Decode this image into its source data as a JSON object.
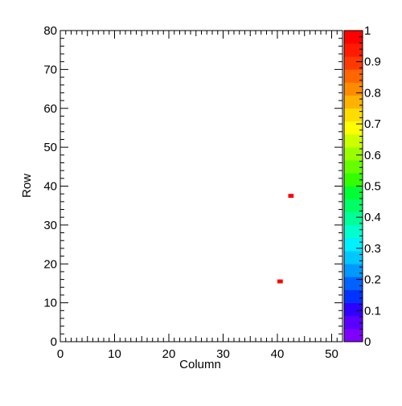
{
  "chart_data": {
    "type": "heatmap",
    "xlabel": "Column",
    "ylabel": "Row",
    "xlim": [
      0,
      52
    ],
    "ylim": [
      0,
      80
    ],
    "x_ticks": [
      0,
      10,
      20,
      30,
      40,
      50
    ],
    "y_ticks": [
      0,
      10,
      20,
      30,
      40,
      50,
      60,
      70,
      80
    ],
    "cells": [
      {
        "column": 42,
        "row": 37,
        "value": 1
      },
      {
        "column": 40,
        "row": 15,
        "value": 1
      }
    ],
    "colorbar": {
      "range": [
        0,
        1
      ],
      "ticks": [
        0,
        0.1,
        0.2,
        0.3,
        0.4,
        0.5,
        0.6,
        0.7,
        0.8,
        0.9,
        1
      ],
      "tick_labels": [
        "0",
        "0.1",
        "0.2",
        "0.3",
        "0.4",
        "0.5",
        "0.6",
        "0.7",
        "0.8",
        "0.9",
        "1"
      ],
      "colors": [
        "#8000ff",
        "#5a00ff",
        "#2f00ff",
        "#0033ff",
        "#0063ff",
        "#0099ff",
        "#00c8ff",
        "#00f0ff",
        "#00ffcc",
        "#00ff99",
        "#00ff66",
        "#00ff33",
        "#33ff00",
        "#66ff00",
        "#99ff00",
        "#ccff00",
        "#ffff00",
        "#ffdd00",
        "#ffb300",
        "#ff8c00",
        "#ff6600",
        "#ff3a00",
        "#ff1a00",
        "#ff0000"
      ]
    },
    "grid": false
  }
}
